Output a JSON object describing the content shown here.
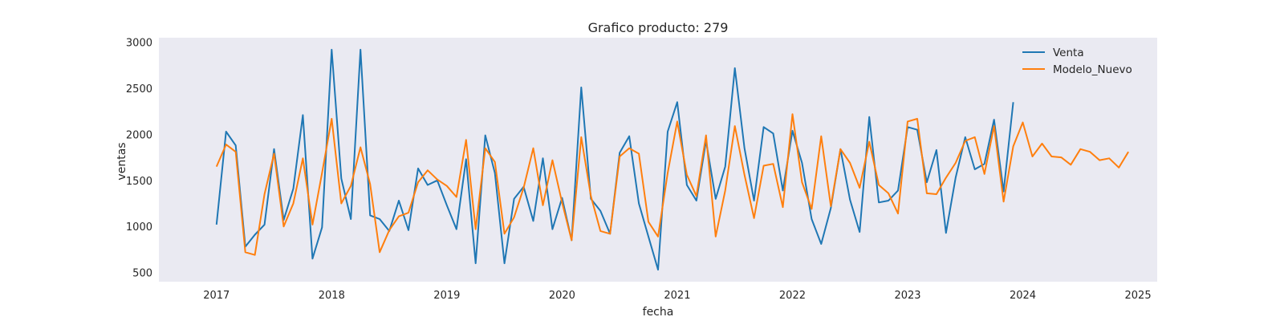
{
  "chart_data": {
    "type": "line",
    "title": "Grafico producto: 279",
    "xlabel": "fecha",
    "ylabel": "ventas",
    "x_start": "2017-01",
    "x_frequency": "monthly",
    "xlim": [
      "2016-07",
      "2025-03"
    ],
    "ylim": [
      400,
      3050
    ],
    "x_ticks": [
      "2017",
      "2018",
      "2019",
      "2020",
      "2021",
      "2022",
      "2023",
      "2024",
      "2025"
    ],
    "y_ticks": [
      500,
      1000,
      1500,
      2000,
      2500,
      3000
    ],
    "grid": false,
    "background": "#eaeaf2",
    "legend_position": "top-right",
    "series": [
      {
        "name": "Venta",
        "color": "#1f77b4",
        "values": [
          1020,
          2030,
          1880,
          780,
          910,
          1020,
          1840,
          1070,
          1410,
          2210,
          650,
          990,
          2920,
          1520,
          1080,
          2920,
          1120,
          1080,
          950,
          1280,
          960,
          1630,
          1450,
          1500,
          1230,
          970,
          1730,
          600,
          1990,
          1580,
          600,
          1300,
          1430,
          1060,
          1740,
          970,
          1310,
          850,
          2510,
          1300,
          1170,
          920,
          1800,
          1980,
          1250,
          890,
          530,
          2030,
          2350,
          1450,
          1280,
          1930,
          1300,
          1650,
          2720,
          1850,
          1280,
          2080,
          2010,
          1390,
          2040,
          1690,
          1080,
          810,
          1200,
          1840,
          1290,
          940,
          2190,
          1260,
          1280,
          1390,
          2080,
          2050,
          1480,
          1830,
          930,
          1530,
          1970,
          1620,
          1680,
          2160,
          1380,
          2350
        ]
      },
      {
        "name": "Modelo_Nuevo",
        "color": "#ff7f0e",
        "values": [
          1650,
          1890,
          1810,
          720,
          690,
          1350,
          1790,
          1000,
          1250,
          1740,
          1020,
          1580,
          2170,
          1250,
          1440,
          1860,
          1460,
          720,
          960,
          1110,
          1150,
          1480,
          1610,
          1510,
          1440,
          1320,
          1940,
          970,
          1850,
          1700,
          920,
          1100,
          1420,
          1850,
          1230,
          1720,
          1260,
          850,
          1970,
          1330,
          950,
          920,
          1760,
          1850,
          1790,
          1050,
          890,
          1580,
          2140,
          1560,
          1330,
          1990,
          890,
          1390,
          2090,
          1560,
          1090,
          1660,
          1680,
          1210,
          2220,
          1480,
          1190,
          1980,
          1220,
          1840,
          1690,
          1420,
          1920,
          1450,
          1360,
          1140,
          2140,
          2170,
          1360,
          1350,
          1530,
          1690,
          1930,
          1970,
          1570,
          2090,
          1270,
          1870,
          2130,
          1760,
          1900,
          1760,
          1750,
          1670,
          1840,
          1810,
          1720,
          1740,
          1640,
          1810
        ]
      }
    ]
  }
}
